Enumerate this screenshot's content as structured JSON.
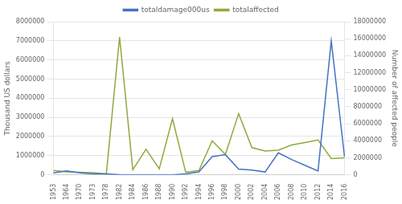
{
  "chart_data": {
    "type": "line",
    "categories": [
      "1953",
      "1964",
      "1970",
      "1973",
      "1978",
      "1982",
      "1984",
      "1986",
      "1988",
      "1990",
      "1992",
      "1994",
      "1996",
      "1998",
      "2000",
      "2002",
      "2004",
      "2006",
      "2008",
      "2010",
      "2012",
      "2014",
      "2016"
    ],
    "series": [
      {
        "name": "totaldamage000us",
        "color": "#4472c4",
        "values": [
          100000,
          200000,
          100000,
          50000,
          50000,
          10000,
          0,
          0,
          0,
          0,
          50000,
          150000,
          950000,
          1050000,
          300000,
          250000,
          150000,
          1150000,
          800000,
          500000,
          200000,
          7000000,
          950000
        ]
      },
      {
        "name": "totalaffected",
        "color": "#8faa3d",
        "axis": "y2",
        "values": [
          500000,
          350000,
          300000,
          250000,
          100000,
          16200000,
          600000,
          3000000,
          700000,
          6600000,
          300000,
          500000,
          4000000,
          2400000,
          7200000,
          3200000,
          2800000,
          2900000,
          3500000,
          3800000,
          4100000,
          1900000,
          2000000
        ]
      }
    ],
    "ylabel": "Thousand US dollars",
    "y2label": "Number of affected people",
    "ylim": [
      0,
      8000000
    ],
    "yticks": [
      0,
      1000000,
      2000000,
      3000000,
      4000000,
      5000000,
      6000000,
      7000000,
      8000000
    ],
    "y2lim": [
      0,
      18000000
    ],
    "y2ticks": [
      0,
      2000000,
      4000000,
      6000000,
      8000000,
      10000000,
      12000000,
      14000000,
      16000000,
      18000000
    ],
    "grid": true,
    "legend": "top"
  }
}
